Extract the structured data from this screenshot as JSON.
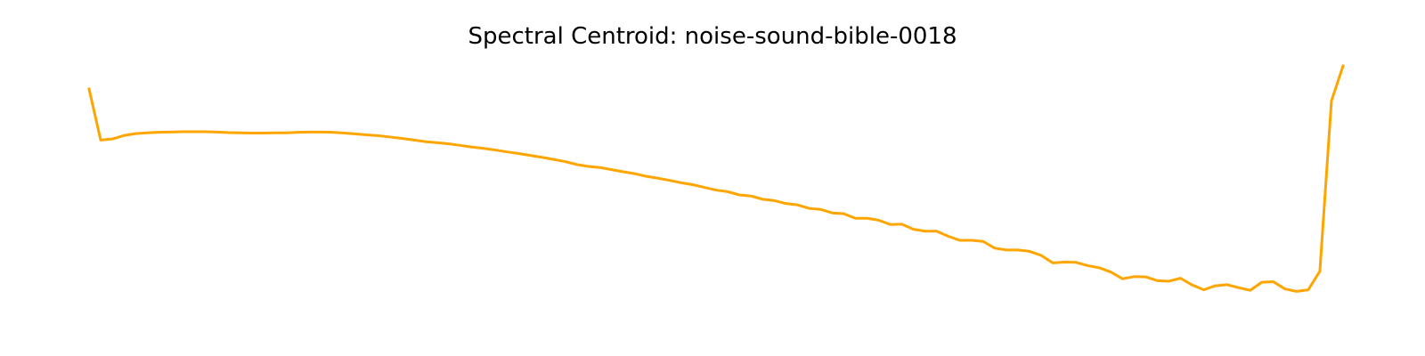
{
  "chart_data": {
    "type": "line",
    "title": "Spectral Centroid: noise-sound-bible-0018",
    "xlabel": "",
    "ylabel": "",
    "axes_visible": false,
    "grid": false,
    "legend": "none",
    "line_color": "#FFA500",
    "ylim": [
      0,
      1
    ],
    "series": [
      {
        "values": [
          0.894,
          0.704,
          0.708,
          0.721,
          0.728,
          0.731,
          0.733,
          0.734,
          0.735,
          0.735,
          0.735,
          0.734,
          0.732,
          0.731,
          0.73,
          0.73,
          0.731,
          0.731,
          0.733,
          0.734,
          0.734,
          0.733,
          0.73,
          0.727,
          0.723,
          0.72,
          0.715,
          0.71,
          0.704,
          0.698,
          0.694,
          0.69,
          0.684,
          0.678,
          0.673,
          0.667,
          0.66,
          0.654,
          0.647,
          0.64,
          0.632,
          0.624,
          0.613,
          0.606,
          0.602,
          0.594,
          0.586,
          0.579,
          0.569,
          0.562,
          0.554,
          0.545,
          0.538,
          0.528,
          0.518,
          0.512,
          0.5,
          0.496,
          0.484,
          0.479,
          0.468,
          0.463,
          0.45,
          0.446,
          0.433,
          0.43,
          0.413,
          0.413,
          0.406,
          0.39,
          0.391,
          0.372,
          0.365,
          0.365,
          0.346,
          0.331,
          0.331,
          0.327,
          0.302,
          0.295,
          0.295,
          0.29,
          0.275,
          0.247,
          0.25,
          0.249,
          0.237,
          0.229,
          0.213,
          0.188,
          0.196,
          0.195,
          0.181,
          0.179,
          0.19,
          0.165,
          0.147,
          0.162,
          0.166,
          0.155,
          0.145,
          0.175,
          0.177,
          0.15,
          0.141,
          0.147,
          0.216,
          0.85,
          0.98
        ]
      }
    ]
  }
}
